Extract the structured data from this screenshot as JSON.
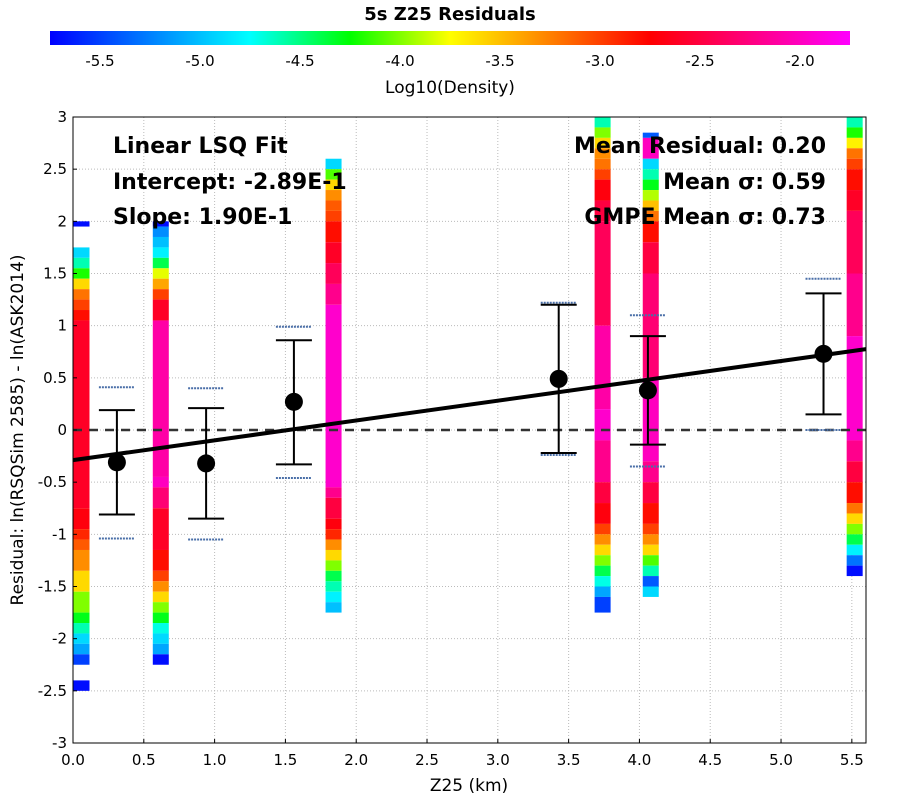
{
  "chart_data": {
    "type": "scatter",
    "title": "5s Z25 Residuals",
    "colorbar": {
      "label": "Log10(Density)",
      "range": [
        -5.75,
        -1.75
      ],
      "ticks": [
        "-5.5",
        "-5.0",
        "-4.5",
        "-4.0",
        "-3.5",
        "-3.0",
        "-2.5",
        "-2.0"
      ],
      "tick_values": [
        -5.5,
        -5.0,
        -4.5,
        -4.0,
        -3.5,
        -3.0,
        -2.5,
        -2.0
      ]
    },
    "xlabel": "Z25 (km)",
    "ylabel": "Residual: ln(RSQSim 2585) - ln(ASK2014)",
    "xlim": [
      0.0,
      5.6
    ],
    "ylim": [
      -3,
      3
    ],
    "xticks": [
      "0.0",
      "0.5",
      "1.0",
      "1.5",
      "2.0",
      "2.5",
      "3.0",
      "3.5",
      "4.0",
      "4.5",
      "5.0",
      "5.5"
    ],
    "xtick_values": [
      0.0,
      0.5,
      1.0,
      1.5,
      2.0,
      2.5,
      3.0,
      3.5,
      4.0,
      4.5,
      5.0,
      5.5
    ],
    "yticks": [
      "-3",
      "-2.5",
      "-2",
      "-1.5",
      "-1",
      "-0.5",
      "0",
      "0.5",
      "1",
      "1.5",
      "2",
      "2.5",
      "3"
    ],
    "ytick_values": [
      -3,
      -2.5,
      -2,
      -1.5,
      -1,
      -0.5,
      0,
      0.5,
      1,
      1.5,
      2,
      2.5,
      3
    ],
    "grid": true,
    "zero_line": true,
    "fit_line": {
      "intercept": -0.289,
      "slope": 0.19
    },
    "annotations_left": [
      "Linear LSQ Fit",
      "Intercept: -2.89E-1",
      "Slope: 1.90E-1"
    ],
    "annotations_right": [
      "Mean Residual: 0.20",
      "Mean σ: 0.59",
      "GMPE Mean σ: 0.73"
    ],
    "bins": [
      {
        "x": 0.31,
        "mean": -0.31,
        "err_low": -0.81,
        "err_high": 0.19,
        "gmpe_low": -1.04,
        "gmpe_high": 0.41
      },
      {
        "x": 0.94,
        "mean": -0.32,
        "err_low": -0.85,
        "err_high": 0.21,
        "gmpe_low": -1.05,
        "gmpe_high": 0.4
      },
      {
        "x": 1.56,
        "mean": 0.27,
        "err_low": -0.33,
        "err_high": 0.86,
        "gmpe_low": -0.46,
        "gmpe_high": 0.99
      },
      {
        "x": 3.43,
        "mean": 0.49,
        "err_low": -0.22,
        "err_high": 1.2,
        "gmpe_low": -0.24,
        "gmpe_high": 1.22
      },
      {
        "x": 4.06,
        "mean": 0.38,
        "err_low": -0.14,
        "err_high": 0.9,
        "gmpe_low": -0.35,
        "gmpe_high": 1.1
      },
      {
        "x": 5.3,
        "mean": 0.73,
        "err_low": 0.15,
        "err_high": 1.31,
        "gmpe_low": 0.0,
        "gmpe_high": 1.45
      }
    ],
    "density_columns": [
      {
        "x": 0.06,
        "cells": [
          [
            1.95,
            2.0,
            -5.7
          ],
          [
            -2.5,
            -2.4,
            -5.7
          ],
          [
            1.65,
            1.75,
            -4.9
          ],
          [
            1.55,
            1.65,
            -4.6
          ],
          [
            1.45,
            1.55,
            -4.2
          ],
          [
            1.35,
            1.45,
            -3.6
          ],
          [
            1.25,
            1.35,
            -3.2
          ],
          [
            1.15,
            1.25,
            -3.0
          ],
          [
            1.05,
            1.15,
            -2.8
          ],
          [
            -0.75,
            1.05,
            -2.6
          ],
          [
            -0.95,
            -0.75,
            -2.7
          ],
          [
            -1.05,
            -0.95,
            -2.9
          ],
          [
            -1.15,
            -1.05,
            -3.1
          ],
          [
            -1.35,
            -1.15,
            -3.3
          ],
          [
            -1.55,
            -1.35,
            -3.6
          ],
          [
            -1.75,
            -1.55,
            -4.0
          ],
          [
            -1.85,
            -1.75,
            -4.3
          ],
          [
            -1.95,
            -1.85,
            -4.6
          ],
          [
            -2.05,
            -1.95,
            -4.9
          ],
          [
            -2.15,
            -2.05,
            -5.1
          ],
          [
            -2.25,
            -2.15,
            -5.5
          ]
        ]
      },
      {
        "x": 0.62,
        "cells": [
          [
            1.95,
            2.0,
            -5.7
          ],
          [
            1.85,
            1.95,
            -5.2
          ],
          [
            1.75,
            1.85,
            -5.0
          ],
          [
            1.65,
            1.75,
            -4.8
          ],
          [
            1.55,
            1.65,
            -4.4
          ],
          [
            1.45,
            1.55,
            -3.8
          ],
          [
            1.35,
            1.45,
            -3.4
          ],
          [
            1.25,
            1.35,
            -3.0
          ],
          [
            1.05,
            1.25,
            -2.6
          ],
          [
            -0.45,
            1.05,
            -2.1
          ],
          [
            -0.55,
            -0.45,
            -2.0
          ],
          [
            -0.75,
            -0.55,
            -2.3
          ],
          [
            -1.15,
            -0.75,
            -2.6
          ],
          [
            -1.35,
            -1.15,
            -2.8
          ],
          [
            -1.45,
            -1.35,
            -3.0
          ],
          [
            -1.55,
            -1.45,
            -3.3
          ],
          [
            -1.65,
            -1.55,
            -3.6
          ],
          [
            -1.75,
            -1.65,
            -4.0
          ],
          [
            -1.85,
            -1.75,
            -4.3
          ],
          [
            -1.95,
            -1.85,
            -4.7
          ],
          [
            -2.05,
            -1.95,
            -4.9
          ],
          [
            -2.15,
            -2.05,
            -5.1
          ],
          [
            -2.25,
            -2.15,
            -5.7
          ]
        ]
      },
      {
        "x": 1.84,
        "cells": [
          [
            2.5,
            2.6,
            -4.9
          ],
          [
            2.4,
            2.5,
            -4.1
          ],
          [
            2.3,
            2.4,
            -3.6
          ],
          [
            2.2,
            2.3,
            -3.3
          ],
          [
            2.1,
            2.2,
            -3.1
          ],
          [
            2.0,
            2.1,
            -3.0
          ],
          [
            1.8,
            2.0,
            -2.8
          ],
          [
            1.6,
            1.8,
            -2.6
          ],
          [
            1.4,
            1.6,
            -2.4
          ],
          [
            1.2,
            1.4,
            -2.2
          ],
          [
            -0.55,
            1.2,
            -1.95
          ],
          [
            -0.65,
            -0.55,
            -2.2
          ],
          [
            -0.85,
            -0.65,
            -2.5
          ],
          [
            -0.95,
            -0.85,
            -2.7
          ],
          [
            -1.05,
            -0.95,
            -2.9
          ],
          [
            -1.15,
            -1.05,
            -3.3
          ],
          [
            -1.25,
            -1.15,
            -3.6
          ],
          [
            -1.35,
            -1.25,
            -4.0
          ],
          [
            -1.45,
            -1.35,
            -4.4
          ],
          [
            -1.55,
            -1.45,
            -4.6
          ],
          [
            -1.65,
            -1.55,
            -4.8
          ],
          [
            -1.75,
            -1.65,
            -5.0
          ]
        ]
      },
      {
        "x": 3.74,
        "cells": [
          [
            2.9,
            3.0,
            -4.6
          ],
          [
            2.8,
            2.9,
            -4.0
          ],
          [
            2.7,
            2.8,
            -3.6
          ],
          [
            2.6,
            2.7,
            -3.3
          ],
          [
            2.5,
            2.6,
            -3.2
          ],
          [
            2.4,
            2.5,
            -3.0
          ],
          [
            2.2,
            2.4,
            -2.7
          ],
          [
            2.0,
            2.2,
            -2.5
          ],
          [
            1.0,
            2.0,
            -2.4
          ],
          [
            0.2,
            1.0,
            -2.1
          ],
          [
            -0.1,
            0.2,
            -1.95
          ],
          [
            -0.5,
            -0.1,
            -2.2
          ],
          [
            -0.7,
            -0.5,
            -2.5
          ],
          [
            -0.9,
            -0.7,
            -2.7
          ],
          [
            -1.0,
            -0.9,
            -3.0
          ],
          [
            -1.1,
            -1.0,
            -3.3
          ],
          [
            -1.2,
            -1.1,
            -3.6
          ],
          [
            -1.3,
            -1.2,
            -4.0
          ],
          [
            -1.4,
            -1.3,
            -4.4
          ],
          [
            -1.5,
            -1.4,
            -4.7
          ],
          [
            -1.6,
            -1.5,
            -5.1
          ],
          [
            -1.75,
            -1.6,
            -5.5
          ]
        ]
      },
      {
        "x": 4.08,
        "cells": [
          [
            2.8,
            2.85,
            -5.4
          ],
          [
            2.6,
            2.8,
            -2.0
          ],
          [
            2.5,
            2.6,
            -4.9
          ],
          [
            2.4,
            2.5,
            -4.6
          ],
          [
            2.3,
            2.4,
            -4.3
          ],
          [
            2.2,
            2.3,
            -3.9
          ],
          [
            2.1,
            2.2,
            -3.5
          ],
          [
            2.0,
            2.1,
            -3.2
          ],
          [
            1.8,
            2.0,
            -2.8
          ],
          [
            1.5,
            1.8,
            -2.5
          ],
          [
            0.5,
            1.5,
            -2.3
          ],
          [
            -0.3,
            0.5,
            -2.0
          ],
          [
            -0.5,
            -0.3,
            -2.2
          ],
          [
            -0.7,
            -0.5,
            -2.5
          ],
          [
            -0.9,
            -0.7,
            -2.8
          ],
          [
            -1.0,
            -0.9,
            -3.0
          ],
          [
            -1.1,
            -1.0,
            -3.3
          ],
          [
            -1.2,
            -1.1,
            -3.6
          ],
          [
            -1.3,
            -1.2,
            -4.1
          ],
          [
            -1.4,
            -1.3,
            -4.6
          ],
          [
            -1.5,
            -1.4,
            -5.4
          ],
          [
            -1.6,
            -1.5,
            -4.9
          ]
        ]
      },
      {
        "x": 5.52,
        "cells": [
          [
            2.9,
            3.0,
            -4.6
          ],
          [
            2.8,
            2.9,
            -4.2
          ],
          [
            2.7,
            2.8,
            -3.7
          ],
          [
            2.6,
            2.7,
            -3.2
          ],
          [
            2.5,
            2.6,
            -3.0
          ],
          [
            2.3,
            2.5,
            -2.8
          ],
          [
            2.1,
            2.3,
            -2.6
          ],
          [
            1.5,
            2.1,
            -2.4
          ],
          [
            0.9,
            1.5,
            -2.2
          ],
          [
            -0.1,
            0.9,
            -1.95
          ],
          [
            -0.3,
            -0.1,
            -2.2
          ],
          [
            -0.5,
            -0.3,
            -2.5
          ],
          [
            -0.7,
            -0.5,
            -2.8
          ],
          [
            -0.8,
            -0.7,
            -3.2
          ],
          [
            -0.9,
            -0.8,
            -3.6
          ],
          [
            -1.0,
            -0.9,
            -4.0
          ],
          [
            -1.1,
            -1.0,
            -4.4
          ],
          [
            -1.2,
            -1.1,
            -4.8
          ],
          [
            -1.3,
            -1.2,
            -5.3
          ],
          [
            -1.4,
            -1.3,
            -5.7
          ]
        ]
      }
    ]
  }
}
